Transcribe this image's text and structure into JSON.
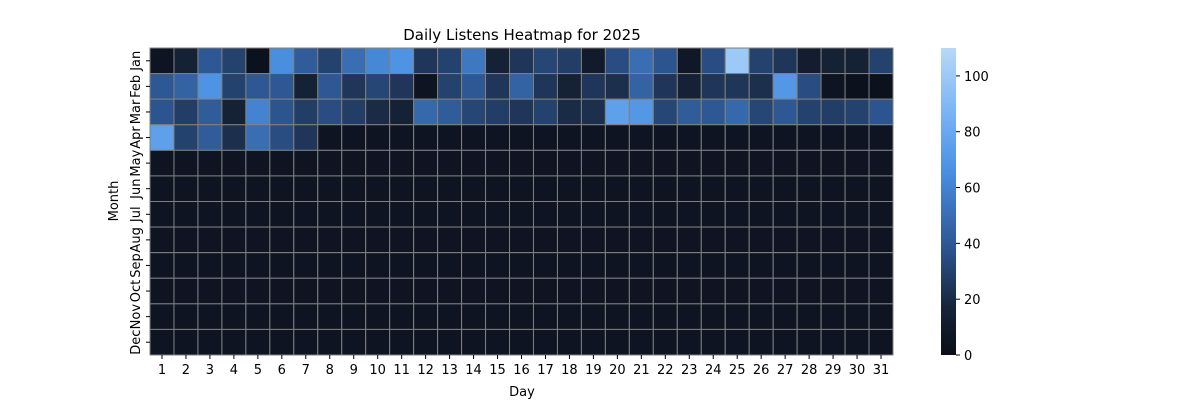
{
  "chart_data": {
    "type": "heatmap",
    "title": "Daily Listens Heatmap for 2025",
    "xlabel": "Day",
    "ylabel": "Month",
    "x_categories": [
      "1",
      "2",
      "3",
      "4",
      "5",
      "6",
      "7",
      "8",
      "9",
      "10",
      "11",
      "12",
      "13",
      "14",
      "15",
      "16",
      "17",
      "18",
      "19",
      "20",
      "21",
      "22",
      "23",
      "24",
      "25",
      "26",
      "27",
      "28",
      "29",
      "30",
      "31"
    ],
    "y_categories": [
      "Jan",
      "Feb",
      "Mar",
      "Apr",
      "May",
      "Jun",
      "Jul",
      "Aug",
      "Sep",
      "Oct",
      "Nov",
      "Dec"
    ],
    "colorbar": {
      "min": 0,
      "max": 110,
      "ticks": [
        0,
        20,
        40,
        60,
        80,
        100
      ]
    },
    "colors": {
      "low": "#0a0e17",
      "mid": "#2e5d9e",
      "high": "#b3d4f5",
      "grid": "#808080"
    },
    "values": [
      [
        5,
        15,
        40,
        30,
        3,
        65,
        42,
        30,
        50,
        62,
        68,
        25,
        30,
        55,
        15,
        25,
        32,
        28,
        10,
        35,
        50,
        38,
        8,
        35,
        100,
        30,
        25,
        12,
        15,
        15,
        30
      ],
      [
        40,
        45,
        68,
        30,
        40,
        40,
        15,
        40,
        25,
        32,
        25,
        5,
        30,
        40,
        25,
        45,
        25,
        15,
        25,
        22,
        45,
        25,
        15,
        25,
        25,
        22,
        70,
        35,
        5,
        3,
        3
      ],
      [
        38,
        28,
        42,
        15,
        60,
        38,
        28,
        35,
        28,
        20,
        15,
        48,
        42,
        32,
        28,
        25,
        30,
        20,
        22,
        75,
        70,
        32,
        42,
        40,
        48,
        32,
        40,
        30,
        28,
        30,
        38
      ],
      [
        75,
        30,
        42,
        22,
        50,
        35,
        25,
        5,
        5,
        5,
        5,
        5,
        5,
        5,
        5,
        5,
        5,
        5,
        5,
        5,
        5,
        5,
        5,
        5,
        5,
        5,
        5,
        5,
        5,
        5,
        5
      ],
      [
        5,
        5,
        5,
        5,
        5,
        5,
        5,
        5,
        5,
        5,
        5,
        5,
        5,
        5,
        5,
        5,
        5,
        5,
        5,
        5,
        5,
        5,
        5,
        5,
        5,
        5,
        5,
        5,
        5,
        5,
        5
      ],
      [
        5,
        5,
        5,
        5,
        5,
        5,
        5,
        5,
        5,
        5,
        5,
        5,
        5,
        5,
        5,
        5,
        5,
        5,
        5,
        5,
        5,
        5,
        5,
        5,
        5,
        5,
        5,
        5,
        5,
        5,
        5
      ],
      [
        5,
        5,
        5,
        5,
        5,
        5,
        5,
        5,
        5,
        5,
        5,
        5,
        5,
        5,
        5,
        5,
        5,
        5,
        5,
        5,
        5,
        5,
        5,
        5,
        5,
        5,
        5,
        5,
        5,
        5,
        5
      ],
      [
        5,
        5,
        5,
        5,
        5,
        5,
        5,
        5,
        5,
        5,
        5,
        5,
        5,
        5,
        5,
        5,
        5,
        5,
        5,
        5,
        5,
        5,
        5,
        5,
        5,
        5,
        5,
        5,
        5,
        5,
        5
      ],
      [
        5,
        5,
        5,
        5,
        5,
        5,
        5,
        5,
        5,
        5,
        5,
        5,
        5,
        5,
        5,
        5,
        5,
        5,
        5,
        5,
        5,
        5,
        5,
        5,
        5,
        5,
        5,
        5,
        5,
        5,
        5
      ],
      [
        5,
        5,
        5,
        5,
        5,
        5,
        5,
        5,
        5,
        5,
        5,
        5,
        5,
        5,
        5,
        5,
        5,
        5,
        5,
        5,
        5,
        5,
        5,
        5,
        5,
        5,
        5,
        5,
        5,
        5,
        5
      ],
      [
        5,
        5,
        5,
        5,
        5,
        5,
        5,
        5,
        5,
        5,
        5,
        5,
        5,
        5,
        5,
        5,
        5,
        5,
        5,
        5,
        5,
        5,
        5,
        5,
        5,
        5,
        5,
        5,
        5,
        5,
        5
      ],
      [
        5,
        5,
        5,
        5,
        5,
        5,
        5,
        5,
        5,
        5,
        5,
        5,
        5,
        5,
        5,
        5,
        5,
        5,
        5,
        5,
        5,
        5,
        5,
        5,
        5,
        5,
        5,
        5,
        5,
        5,
        5
      ]
    ]
  }
}
